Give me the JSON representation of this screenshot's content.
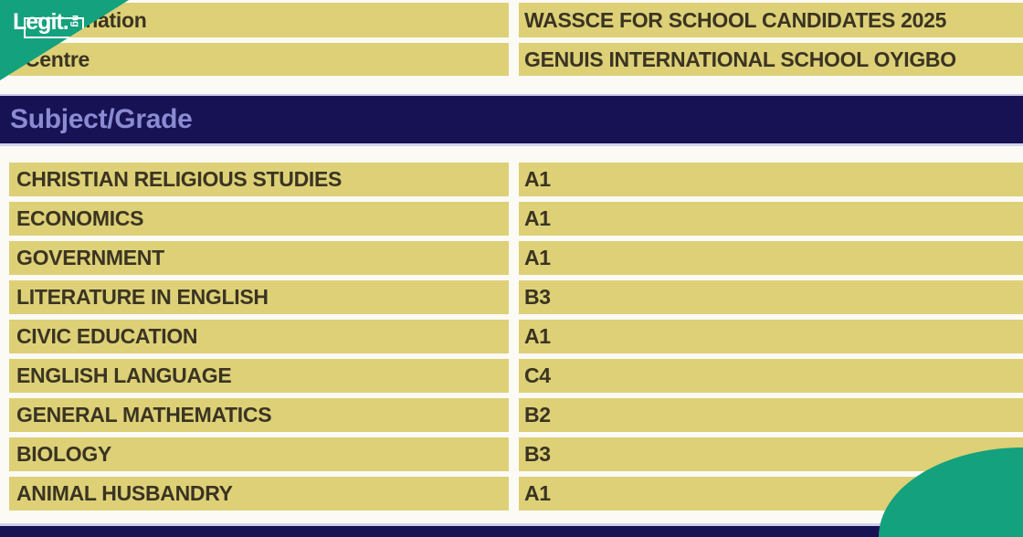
{
  "watermark": {
    "logo_text": "Legit.",
    "logo_suffix": "ng"
  },
  "info_table": {
    "rows": [
      {
        "label": "Examination",
        "value": "WASSCE FOR SCHOOL CANDIDATES 2025"
      },
      {
        "label": "Centre",
        "value": "GENUIS INTERNATIONAL SCHOOL OYIGBO"
      }
    ]
  },
  "results_table": {
    "header_label": "Subject/Grade",
    "rows": [
      {
        "subject": "CHRISTIAN RELIGIOUS STUDIES",
        "grade": "A1"
      },
      {
        "subject": "ECONOMICS",
        "grade": "A1"
      },
      {
        "subject": "GOVERNMENT",
        "grade": "A1"
      },
      {
        "subject": "LITERATURE IN ENGLISH",
        "grade": "B3"
      },
      {
        "subject": "CIVIC EDUCATION",
        "grade": "A1"
      },
      {
        "subject": "ENGLISH LANGUAGE",
        "grade": "C4"
      },
      {
        "subject": "GENERAL MATHEMATICS",
        "grade": "B2"
      },
      {
        "subject": "BIOLOGY",
        "grade": "B3"
      },
      {
        "subject": "ANIMAL HUSBANDRY",
        "grade": "A1"
      }
    ]
  },
  "colors": {
    "brand_teal": "#14a17d",
    "row_yellow": "#ddd077",
    "header_navy": "#171253",
    "header_text": "#8a8bd3",
    "row_text": "#3a3422"
  }
}
